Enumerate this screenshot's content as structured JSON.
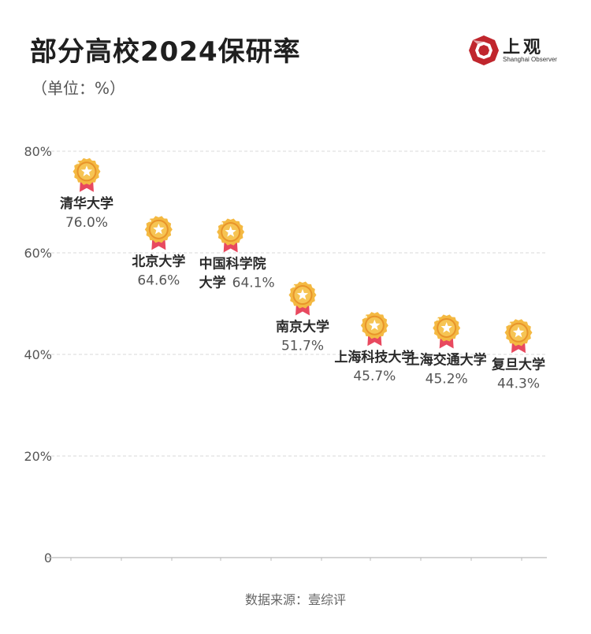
{
  "header": {
    "title": "部分高校2024保研率",
    "unit": "（单位：%）"
  },
  "logo": {
    "name": "上观",
    "subtitle": "Shanghai Observer",
    "color": "#c0262d"
  },
  "source": "数据来源：壹综评",
  "chart_data": {
    "type": "scatter",
    "categories": [
      "清华大学",
      "北京大学",
      "中国科学院大学",
      "南京大学",
      "上海科技大学",
      "上海交通大学",
      "复旦大学"
    ],
    "labels": [
      [
        "清华大学"
      ],
      [
        "北京大学"
      ],
      [
        "中国科学院",
        "大学"
      ],
      [
        "南京大学"
      ],
      [
        "上海科技大学"
      ],
      [
        "上海交通大学"
      ],
      [
        "复旦大学"
      ]
    ],
    "values": [
      76.0,
      64.6,
      64.1,
      51.7,
      45.7,
      45.2,
      44.3
    ],
    "value_labels": [
      "76.0%",
      "64.6%",
      "64.1%",
      "51.7%",
      "45.7%",
      "45.2%",
      "44.3%"
    ],
    "yticks": [
      "0",
      "20%",
      "40%",
      "60%",
      "80%"
    ],
    "ytick_values": [
      0,
      20,
      40,
      60,
      80
    ],
    "ylim": [
      0,
      80
    ],
    "grid": true,
    "marker": "medal-icon",
    "colors": {
      "medal": "#f4b942",
      "medal_inner": "#e8942a",
      "ribbon": "#e8495f",
      "grid": "#d9d9d9",
      "axis": "#bbbbbb"
    }
  }
}
